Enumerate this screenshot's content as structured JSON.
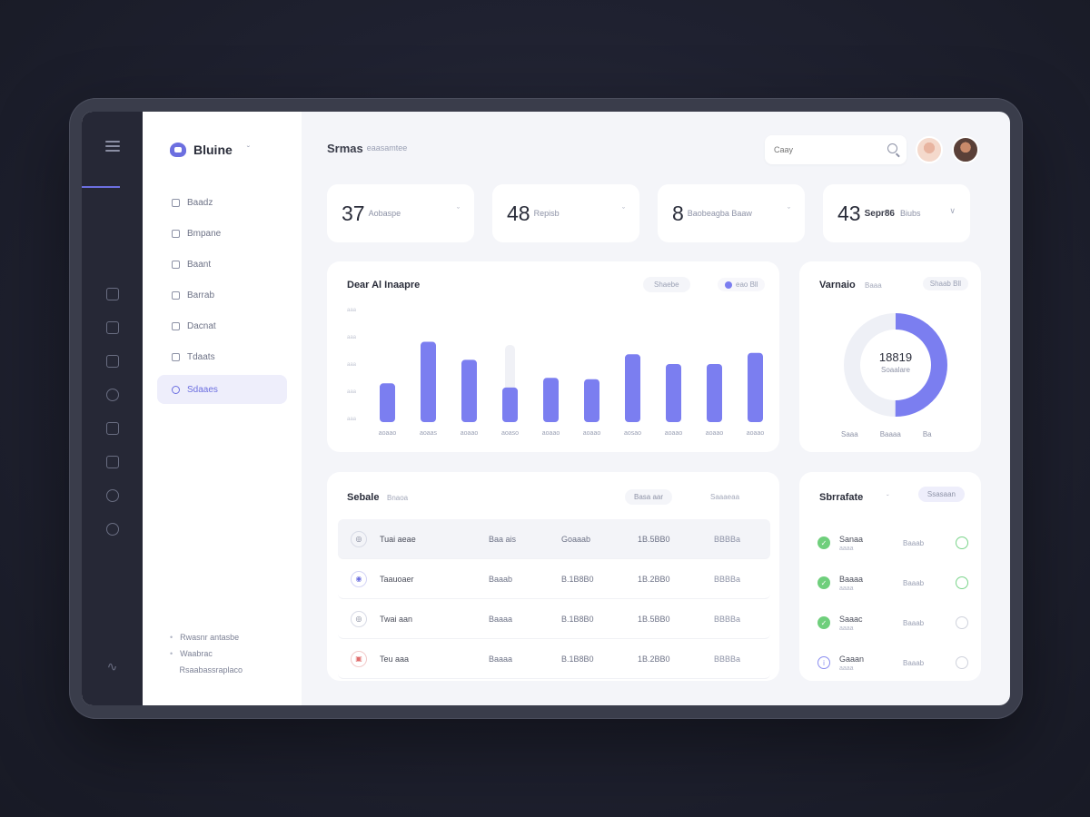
{
  "brand": {
    "name": "Bluine",
    "caret": "ˇ"
  },
  "sidebar": {
    "items": [
      {
        "label": "Baadz"
      },
      {
        "label": "Bmpane"
      },
      {
        "label": "Baant"
      },
      {
        "label": "Barrab"
      },
      {
        "label": "Dacnat"
      },
      {
        "label": "Tdaats"
      },
      {
        "label": "Sdaaes",
        "active": true
      }
    ],
    "footer": [
      "Rwasnr antasbe",
      "Waabrac",
      "Rsaabassraplaco"
    ]
  },
  "header": {
    "title": "Srmas",
    "subtitle": "eaasamtee"
  },
  "search": {
    "placeholder": "Caay"
  },
  "stats": [
    {
      "value": "37",
      "label": "Aobaspe"
    },
    {
      "value": "48",
      "label": "Repisb"
    },
    {
      "value": "8",
      "label": "Baobeagba Baaw"
    },
    {
      "value": "43",
      "label": "Sepr86",
      "label2": "Biubs"
    }
  ],
  "chart": {
    "title": "Dear Al Inaapre",
    "pill": "Shaebe",
    "legend": "eao Bll",
    "accent": "#7b7ef0"
  },
  "chart_data": {
    "type": "bar",
    "title": "Dear Al Inaapre",
    "categories": [
      "aoaao",
      "aoaas",
      "aoaao",
      "aoaso",
      "aoaao",
      "aoaao",
      "aosao",
      "aoaao",
      "aoaao",
      "aoaao"
    ],
    "values": [
      28,
      58,
      45,
      25,
      32,
      31,
      49,
      42,
      42,
      50
    ],
    "yticks": [
      "aaa",
      "aaa",
      "aaa",
      "aaa",
      "aaa"
    ],
    "ylim": [
      0,
      80
    ],
    "grid": false,
    "legend_position": "top-right"
  },
  "donut": {
    "title": "Varnaio",
    "subtitle": "Baaa",
    "pill": "Shaab Bll",
    "value": "18819",
    "label": "Soaalare",
    "fraction": 0.5,
    "legend": [
      "Saaa",
      "Baaaa",
      "Ba"
    ]
  },
  "table": {
    "title": "Sebale",
    "subtitle": "Bnaoa",
    "pill1": "Basa aar",
    "pill2": "Saaaeaa",
    "rows": [
      {
        "icon": "◎",
        "tone": "gray",
        "name": "Tuai aeae",
        "type": "Baa ais",
        "a": "Goaaab",
        "b": "1B.5BB0",
        "c": "BBBBa"
      },
      {
        "icon": "◉",
        "tone": "blue",
        "name": "Taauoaer",
        "type": "Baaab",
        "a": "B.1B8B0",
        "b": "1B.2BB0",
        "c": "BBBBa"
      },
      {
        "icon": "◎",
        "tone": "gray",
        "name": "Twai aan",
        "type": "Baaaa",
        "a": "B.1B8B0",
        "b": "1B.5BB0",
        "c": "BBBBa"
      },
      {
        "icon": "▣",
        "tone": "red",
        "name": "Teu aaa",
        "type": "Baaaa",
        "a": "B.1B8B0",
        "b": "1B.2BB0",
        "c": "BBBBa"
      }
    ]
  },
  "list": {
    "title": "Sbrrafate",
    "caret": "ˇ",
    "pill": "Ssasaan",
    "items": [
      {
        "name": "Sanaa",
        "sub": "aaaa",
        "status": "Baaab",
        "done": true,
        "badge": "green"
      },
      {
        "name": "Baaaa",
        "sub": "aaaa",
        "status": "Baaab",
        "done": true,
        "badge": "green"
      },
      {
        "name": "Saaac",
        "sub": "aaaa",
        "status": "Baaab",
        "done": false,
        "badge": "green"
      },
      {
        "name": "Gaaan",
        "sub": "aaaa",
        "status": "Baaab",
        "done": false,
        "badge": "blue"
      }
    ]
  }
}
